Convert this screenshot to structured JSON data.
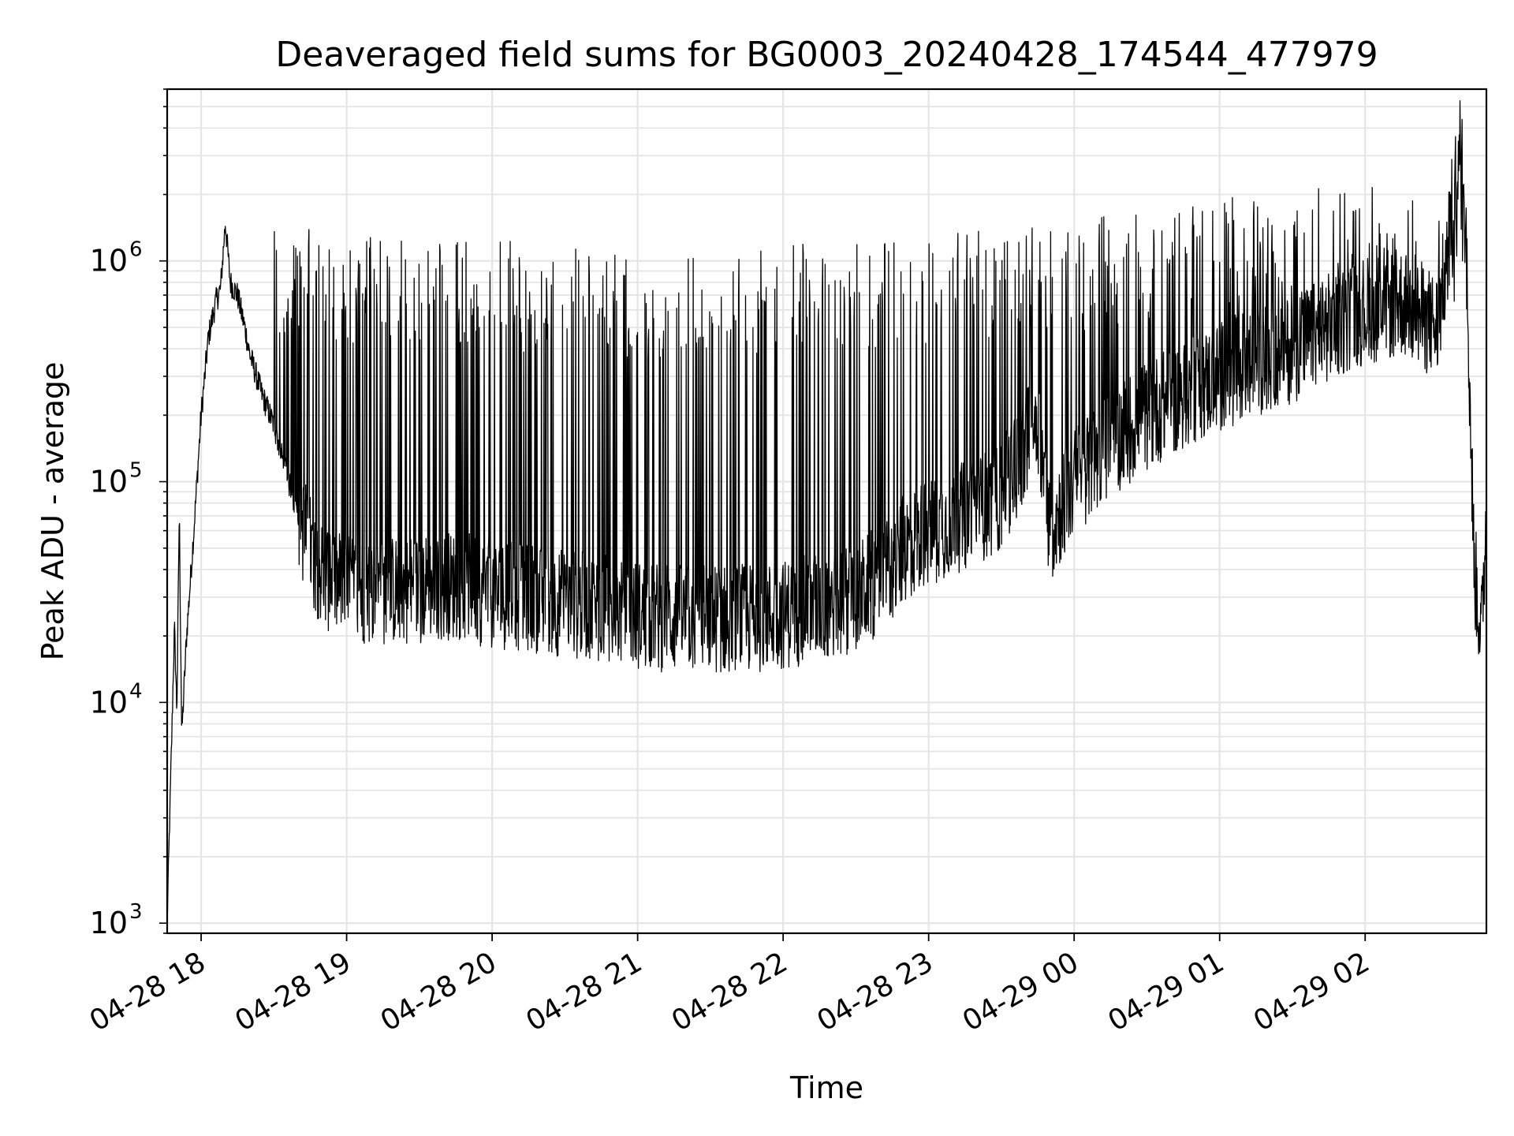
{
  "chart_data": {
    "type": "line",
    "title": "Deaveraged field sums for BG0003_20240428_174544_477979",
    "xlabel": "Time",
    "ylabel": "Peak ADU - average",
    "yscale": "log",
    "ylim": [
      900,
      6000000
    ],
    "xlim": [
      "2024-04-28 17:46",
      "2024-04-29 02:50"
    ],
    "grid": true,
    "legend": "none",
    "line_color": "#000000",
    "grid_color": "#e5e5e5",
    "x_ticks": [
      {
        "t": "2024-04-28 18:00",
        "label": "04-28 18"
      },
      {
        "t": "2024-04-28 19:00",
        "label": "04-28 19"
      },
      {
        "t": "2024-04-28 20:00",
        "label": "04-28 20"
      },
      {
        "t": "2024-04-28 21:00",
        "label": "04-28 21"
      },
      {
        "t": "2024-04-28 22:00",
        "label": "04-28 22"
      },
      {
        "t": "2024-04-28 23:00",
        "label": "04-28 23"
      },
      {
        "t": "2024-04-29 00:00",
        "label": "04-29 00"
      },
      {
        "t": "2024-04-29 01:00",
        "label": "04-29 01"
      },
      {
        "t": "2024-04-29 02:00",
        "label": "04-29 02"
      }
    ],
    "y_ticks": [
      {
        "value": 1000,
        "base": "10",
        "exp": "3"
      },
      {
        "value": 10000,
        "base": "10",
        "exp": "4"
      },
      {
        "value": 100000,
        "base": "10",
        "exp": "5"
      },
      {
        "value": 1000000,
        "base": "10",
        "exp": "6"
      }
    ],
    "series": [
      {
        "points": [
          [
            "2024-04-28 17:46",
            1000
          ],
          [
            "2024-04-28 17:49",
            22000
          ],
          [
            "2024-04-28 17:50",
            9000
          ],
          [
            "2024-04-28 17:51",
            75000
          ],
          [
            "2024-04-28 17:52",
            7000
          ],
          [
            "2024-04-28 17:54",
            20000
          ],
          [
            "2024-04-28 17:57",
            60000
          ],
          [
            "2024-04-28 18:00",
            200000
          ],
          [
            "2024-04-28 18:03",
            450000
          ],
          [
            "2024-04-28 18:06",
            650000
          ],
          [
            "2024-04-28 18:08",
            750000
          ],
          [
            "2024-04-28 18:10",
            1500000
          ],
          [
            "2024-04-28 18:12",
            800000
          ],
          [
            "2024-04-28 18:15",
            700000
          ],
          [
            "2024-04-28 18:18",
            500000
          ],
          [
            "2024-04-28 18:20",
            380000
          ],
          [
            "2024-04-28 18:25",
            250000
          ],
          [
            "2024-04-28 18:30",
            180000
          ],
          [
            "2024-04-28 18:35",
            110000
          ],
          [
            "2024-04-28 18:40",
            70000
          ],
          [
            "2024-04-28 18:45",
            50000
          ],
          [
            "2024-04-28 18:50",
            38000
          ],
          [
            "2024-04-28 19:00",
            33000
          ],
          [
            "2024-04-28 19:15",
            32000
          ],
          [
            "2024-04-28 19:30",
            33000
          ],
          [
            "2024-04-28 19:45",
            34000
          ],
          [
            "2024-04-28 20:00",
            31000
          ],
          [
            "2024-04-28 20:15",
            30000
          ],
          [
            "2024-04-28 20:30",
            28000
          ],
          [
            "2024-04-28 20:45",
            27000
          ],
          [
            "2024-04-28 21:00",
            25000
          ],
          [
            "2024-04-28 21:15",
            24000
          ],
          [
            "2024-04-28 21:30",
            24000
          ],
          [
            "2024-04-28 21:45",
            24000
          ],
          [
            "2024-04-28 22:00",
            25000
          ],
          [
            "2024-04-28 22:15",
            27000
          ],
          [
            "2024-04-28 22:30",
            30000
          ],
          [
            "2024-04-28 22:45",
            40000
          ],
          [
            "2024-04-28 22:50",
            50000
          ],
          [
            "2024-04-28 23:00",
            60000
          ],
          [
            "2024-04-28 23:15",
            70000
          ],
          [
            "2024-04-28 23:30",
            85000
          ],
          [
            "2024-04-28 23:45",
            200000
          ],
          [
            "2024-04-28 23:50",
            60000
          ],
          [
            "2024-04-29 00:00",
            100000
          ],
          [
            "2024-04-29 00:15",
            150000
          ],
          [
            "2024-04-29 00:30",
            200000
          ],
          [
            "2024-04-29 00:45",
            250000
          ],
          [
            "2024-04-29 01:00",
            300000
          ],
          [
            "2024-04-29 01:15",
            350000
          ],
          [
            "2024-04-29 01:30",
            400000
          ],
          [
            "2024-04-29 01:45",
            500000
          ],
          [
            "2024-04-29 02:00",
            600000
          ],
          [
            "2024-04-29 02:15",
            650000
          ],
          [
            "2024-04-29 02:30",
            500000
          ],
          [
            "2024-04-29 02:40",
            4000000
          ],
          [
            "2024-04-29 02:42",
            800000
          ],
          [
            "2024-04-29 02:45",
            40000
          ],
          [
            "2024-04-29 02:48",
            20000
          ],
          [
            "2024-04-29 02:50",
            80000
          ]
        ],
        "spike_envelope": [
          [
            "2024-04-28 18:10",
            1600000
          ],
          [
            "2024-04-28 18:30",
            1500000
          ],
          [
            "2024-04-28 19:00",
            1300000
          ],
          [
            "2024-04-28 20:00",
            1250000
          ],
          [
            "2024-04-28 21:00",
            1100000
          ],
          [
            "2024-04-28 22:00",
            1200000
          ],
          [
            "2024-04-28 23:00",
            1300000
          ],
          [
            "2024-04-29 00:00",
            1500000
          ],
          [
            "2024-04-29 01:00",
            2000000
          ],
          [
            "2024-04-29 02:00",
            2200000
          ],
          [
            "2024-04-29 02:30",
            2000000
          ]
        ]
      }
    ]
  }
}
